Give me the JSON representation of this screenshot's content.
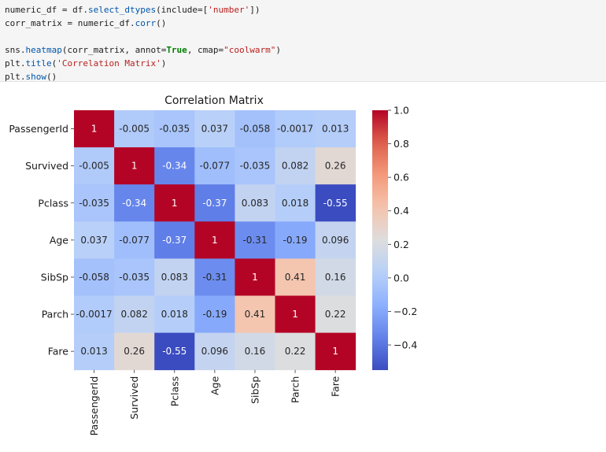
{
  "code": {
    "lines": [
      [
        {
          "t": "numeric_df = df.",
          "c": ""
        },
        {
          "t": "select_dtypes",
          "c": "fn"
        },
        {
          "t": "(include=[",
          "c": ""
        },
        {
          "t": "'number'",
          "c": "str"
        },
        {
          "t": "])",
          "c": ""
        }
      ],
      [
        {
          "t": "corr_matrix = numeric_df.",
          "c": ""
        },
        {
          "t": "corr",
          "c": "fn"
        },
        {
          "t": "()",
          "c": ""
        }
      ],
      [
        {
          "t": "",
          "c": ""
        }
      ],
      [
        {
          "t": "sns.",
          "c": ""
        },
        {
          "t": "heatmap",
          "c": "fn"
        },
        {
          "t": "(corr_matrix, annot=",
          "c": ""
        },
        {
          "t": "True",
          "c": "kw"
        },
        {
          "t": ", cmap=",
          "c": ""
        },
        {
          "t": "\"coolwarm\"",
          "c": "str"
        },
        {
          "t": ")",
          "c": ""
        }
      ],
      [
        {
          "t": "plt.",
          "c": ""
        },
        {
          "t": "title",
          "c": "fn"
        },
        {
          "t": "(",
          "c": ""
        },
        {
          "t": "'Correlation Matrix'",
          "c": "str"
        },
        {
          "t": ")",
          "c": ""
        }
      ],
      [
        {
          "t": "plt.",
          "c": ""
        },
        {
          "t": "show",
          "c": "fn"
        },
        {
          "t": "()",
          "c": ""
        }
      ]
    ]
  },
  "chart_data": {
    "type": "heatmap",
    "title": "Correlation Matrix",
    "labels": [
      "PassengerId",
      "Survived",
      "Pclass",
      "Age",
      "SibSp",
      "Parch",
      "Fare"
    ],
    "values": [
      [
        1,
        -0.005,
        -0.035,
        0.037,
        -0.058,
        -0.0017,
        0.013
      ],
      [
        -0.005,
        1,
        -0.34,
        -0.077,
        -0.035,
        0.082,
        0.26
      ],
      [
        -0.035,
        -0.34,
        1,
        -0.37,
        0.083,
        0.018,
        -0.55
      ],
      [
        0.037,
        -0.077,
        -0.37,
        1,
        -0.31,
        -0.19,
        0.096
      ],
      [
        -0.058,
        -0.035,
        0.083,
        -0.31,
        1,
        0.41,
        0.16
      ],
      [
        -0.0017,
        0.082,
        0.018,
        -0.19,
        0.41,
        1,
        0.22
      ],
      [
        0.013,
        0.26,
        -0.55,
        0.096,
        0.16,
        0.22,
        1
      ]
    ],
    "annotations": [
      [
        "1",
        "-0.005",
        "-0.035",
        "0.037",
        "-0.058",
        "-0.0017",
        "0.013"
      ],
      [
        "-0.005",
        "1",
        "-0.34",
        "-0.077",
        "-0.035",
        "0.082",
        "0.26"
      ],
      [
        "-0.035",
        "-0.34",
        "1",
        "-0.37",
        "0.083",
        "0.018",
        "-0.55"
      ],
      [
        "0.037",
        "-0.077",
        "-0.37",
        "1",
        "-0.31",
        "-0.19",
        "0.096"
      ],
      [
        "-0.058",
        "-0.035",
        "0.083",
        "-0.31",
        "1",
        "0.41",
        "0.16"
      ],
      [
        "-0.0017",
        "0.082",
        "0.018",
        "-0.19",
        "0.41",
        "1",
        "0.22"
      ],
      [
        "0.013",
        "0.26",
        "-0.55",
        "0.096",
        "0.16",
        "0.22",
        "1"
      ]
    ],
    "cmap": "coolwarm",
    "vmin": -0.55,
    "vmax": 1,
    "colorbar_ticks": [
      {
        "v": 1.0,
        "label": "1.0"
      },
      {
        "v": 0.8,
        "label": "0.8"
      },
      {
        "v": 0.6,
        "label": "0.6"
      },
      {
        "v": 0.4,
        "label": "0.4"
      },
      {
        "v": 0.2,
        "label": "0.2"
      },
      {
        "v": 0.0,
        "label": "0.0"
      },
      {
        "v": -0.2,
        "label": "−0.2"
      },
      {
        "v": -0.4,
        "label": "−0.4"
      }
    ]
  }
}
